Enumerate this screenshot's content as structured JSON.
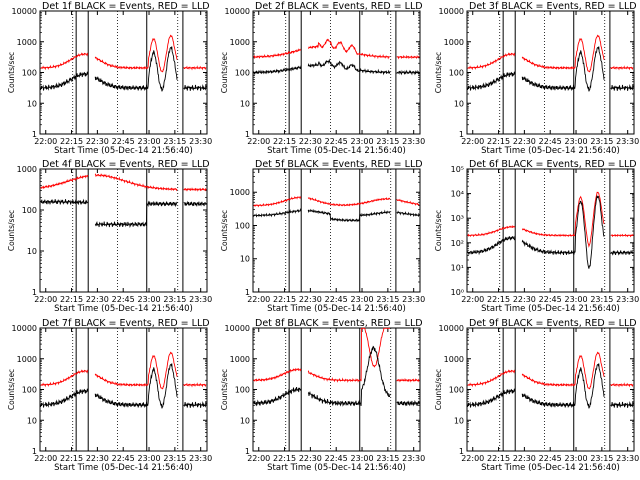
{
  "page": {
    "xlabel_prefix": "Start Time (05-Dec-14 21:56:40)"
  },
  "chart_data": [
    {
      "type": "line",
      "title": "Det 1f BLACK = Events, RED = LLD",
      "xlabel": "Start Time (05-Dec-14 21:56:40)",
      "ylabel": "Counts/sec",
      "x_ticks": [
        "22:00",
        "22:15",
        "22:30",
        "22:45",
        "23:00",
        "23:15",
        "23:30"
      ],
      "y_ticks": [
        "1",
        "10",
        "100",
        "1000",
        "10000"
      ],
      "yscale": "log",
      "ylim": [
        1,
        10000
      ],
      "xlim_minutes": [
        0,
        97
      ],
      "dotted_lines": [
        19,
        45,
        80
      ],
      "solid_lines": [
        21,
        28,
        62,
        83
      ],
      "series": [
        {
          "color": "#ff0000",
          "kind": "red_a"
        },
        {
          "color": "#000000",
          "kind": "black_a"
        }
      ]
    },
    {
      "type": "line",
      "title": "Det 2f BLACK = Events, RED = LLD",
      "xlabel": "Start Time (05-Dec-14 21:56:40)",
      "ylabel": "Counts/sec",
      "x_ticks": [
        "22:00",
        "22:15",
        "22:30",
        "22:45",
        "23:00",
        "23:15",
        "23:30"
      ],
      "y_ticks": [
        "1",
        "10",
        "100",
        "1000",
        "10000"
      ],
      "yscale": "log",
      "ylim": [
        1,
        10000
      ],
      "xlim_minutes": [
        0,
        97
      ],
      "dotted_lines": [
        19,
        45,
        80
      ],
      "solid_lines": [
        21,
        28,
        62,
        83
      ],
      "series": [
        {
          "color": "#ff0000",
          "kind": "red_b"
        },
        {
          "color": "#000000",
          "kind": "black_b"
        }
      ]
    },
    {
      "type": "line",
      "title": "Det 3f BLACK = Events, RED = LLD",
      "xlabel": "Start Time (05-Dec-14 21:56:40)",
      "ylabel": "Counts/sec",
      "x_ticks": [
        "22:00",
        "22:15",
        "22:30",
        "22:45",
        "23:00",
        "23:15",
        "23:30"
      ],
      "y_ticks": [
        "1",
        "10",
        "100",
        "1000",
        "10000"
      ],
      "yscale": "log",
      "ylim": [
        1,
        10000
      ],
      "xlim_minutes": [
        0,
        97
      ],
      "dotted_lines": [
        19,
        45,
        80
      ],
      "solid_lines": [
        21,
        28,
        62,
        83
      ],
      "series": [
        {
          "color": "#ff0000",
          "kind": "red_a"
        },
        {
          "color": "#000000",
          "kind": "black_a"
        }
      ]
    },
    {
      "type": "line",
      "title": "Det 4f BLACK = Events, RED = LLD",
      "xlabel": "Start Time (05-Dec-14 21:56:40)",
      "ylabel": "Counts/sec",
      "x_ticks": [
        "22:00",
        "22:15",
        "22:30",
        "22:45",
        "23:00",
        "23:15",
        "23:30"
      ],
      "y_ticks": [
        "1",
        "10",
        "100",
        "1000"
      ],
      "yscale": "log",
      "ylim": [
        1,
        1000
      ],
      "xlim_minutes": [
        0,
        97
      ],
      "dotted_lines": [
        19,
        45,
        80
      ],
      "solid_lines": [
        21,
        28,
        62,
        83
      ],
      "series": [
        {
          "color": "#ff0000",
          "kind": "red_c"
        },
        {
          "color": "#000000",
          "kind": "black_c"
        }
      ]
    },
    {
      "type": "line",
      "title": "Det 5f BLACK = Events, RED = LLD",
      "xlabel": "Start Time (05-Dec-14 21:56:40)",
      "ylabel": "Counts/sec",
      "x_ticks": [
        "22:00",
        "22:15",
        "22:30",
        "22:45",
        "23:00",
        "23:15",
        "23:30"
      ],
      "y_ticks": [
        "1",
        "10",
        "100",
        "1000"
      ],
      "yscale": "log",
      "ylim": [
        1,
        5000
      ],
      "xlim_minutes": [
        0,
        97
      ],
      "dotted_lines": [
        19,
        45,
        80
      ],
      "solid_lines": [
        21,
        28,
        62,
        83
      ],
      "series": [
        {
          "color": "#ff0000",
          "kind": "red_d"
        },
        {
          "color": "#000000",
          "kind": "black_d"
        }
      ]
    },
    {
      "type": "line",
      "title": "Det 6f BLACK = Events, RED = LLD",
      "xlabel": "Start Time (05-Dec-14 21:56:40)",
      "ylabel": "Counts/sec",
      "x_ticks": [
        "22:00",
        "22:15",
        "22:30",
        "22:45",
        "23:00",
        "23:15",
        "23:30"
      ],
      "y_ticks": [
        "10⁰",
        "10¹",
        "10²",
        "10³",
        "10⁴",
        "10⁵"
      ],
      "yscale": "log",
      "ylim": [
        1,
        100000
      ],
      "xlim_minutes": [
        0,
        97
      ],
      "dotted_lines": [
        19,
        45,
        80
      ],
      "solid_lines": [
        21,
        28,
        62,
        83
      ],
      "series": [
        {
          "color": "#ff0000",
          "kind": "red_e"
        },
        {
          "color": "#000000",
          "kind": "black_e"
        }
      ]
    },
    {
      "type": "line",
      "title": "Det 7f BLACK = Events, RED = LLD",
      "xlabel": "Start Time (05-Dec-14 21:56:40)",
      "ylabel": "Counts/sec",
      "x_ticks": [
        "22:00",
        "22:15",
        "22:30",
        "22:45",
        "23:00",
        "23:15",
        "23:30"
      ],
      "y_ticks": [
        "1",
        "10",
        "100",
        "1000",
        "10000"
      ],
      "yscale": "log",
      "ylim": [
        1,
        10000
      ],
      "xlim_minutes": [
        0,
        97
      ],
      "dotted_lines": [
        19,
        45,
        80
      ],
      "solid_lines": [
        21,
        28,
        62,
        83
      ],
      "series": [
        {
          "color": "#ff0000",
          "kind": "red_a"
        },
        {
          "color": "#000000",
          "kind": "black_a"
        }
      ]
    },
    {
      "type": "line",
      "title": "Det 8f BLACK = Events, RED = LLD",
      "xlabel": "Start Time (05-Dec-14 21:56:40)",
      "ylabel": "Counts/sec",
      "x_ticks": [
        "22:00",
        "22:15",
        "22:30",
        "22:45",
        "23:00",
        "23:15",
        "23:30"
      ],
      "y_ticks": [
        "1",
        "10",
        "100",
        "1000",
        "10000"
      ],
      "yscale": "log",
      "ylim": [
        1,
        10000
      ],
      "xlim_minutes": [
        0,
        97
      ],
      "dotted_lines": [
        19,
        45,
        80
      ],
      "solid_lines": [
        21,
        28,
        62,
        83
      ],
      "series": [
        {
          "color": "#ff0000",
          "kind": "red_f"
        },
        {
          "color": "#000000",
          "kind": "black_f"
        }
      ]
    },
    {
      "type": "line",
      "title": "Det 9f BLACK = Events, RED = LLD",
      "xlabel": "Start Time (05-Dec-14 21:56:40)",
      "ylabel": "Counts/sec",
      "x_ticks": [
        "22:00",
        "22:15",
        "22:30",
        "22:45",
        "23:00",
        "23:15",
        "23:30"
      ],
      "y_ticks": [
        "1",
        "10",
        "100",
        "1000",
        "10000"
      ],
      "yscale": "log",
      "ylim": [
        1,
        10000
      ],
      "xlim_minutes": [
        0,
        97
      ],
      "dotted_lines": [
        19,
        45,
        80
      ],
      "solid_lines": [
        21,
        28,
        62,
        83
      ],
      "series": [
        {
          "color": "#ff0000",
          "kind": "red_a"
        },
        {
          "color": "#000000",
          "kind": "black_a"
        }
      ]
    }
  ]
}
